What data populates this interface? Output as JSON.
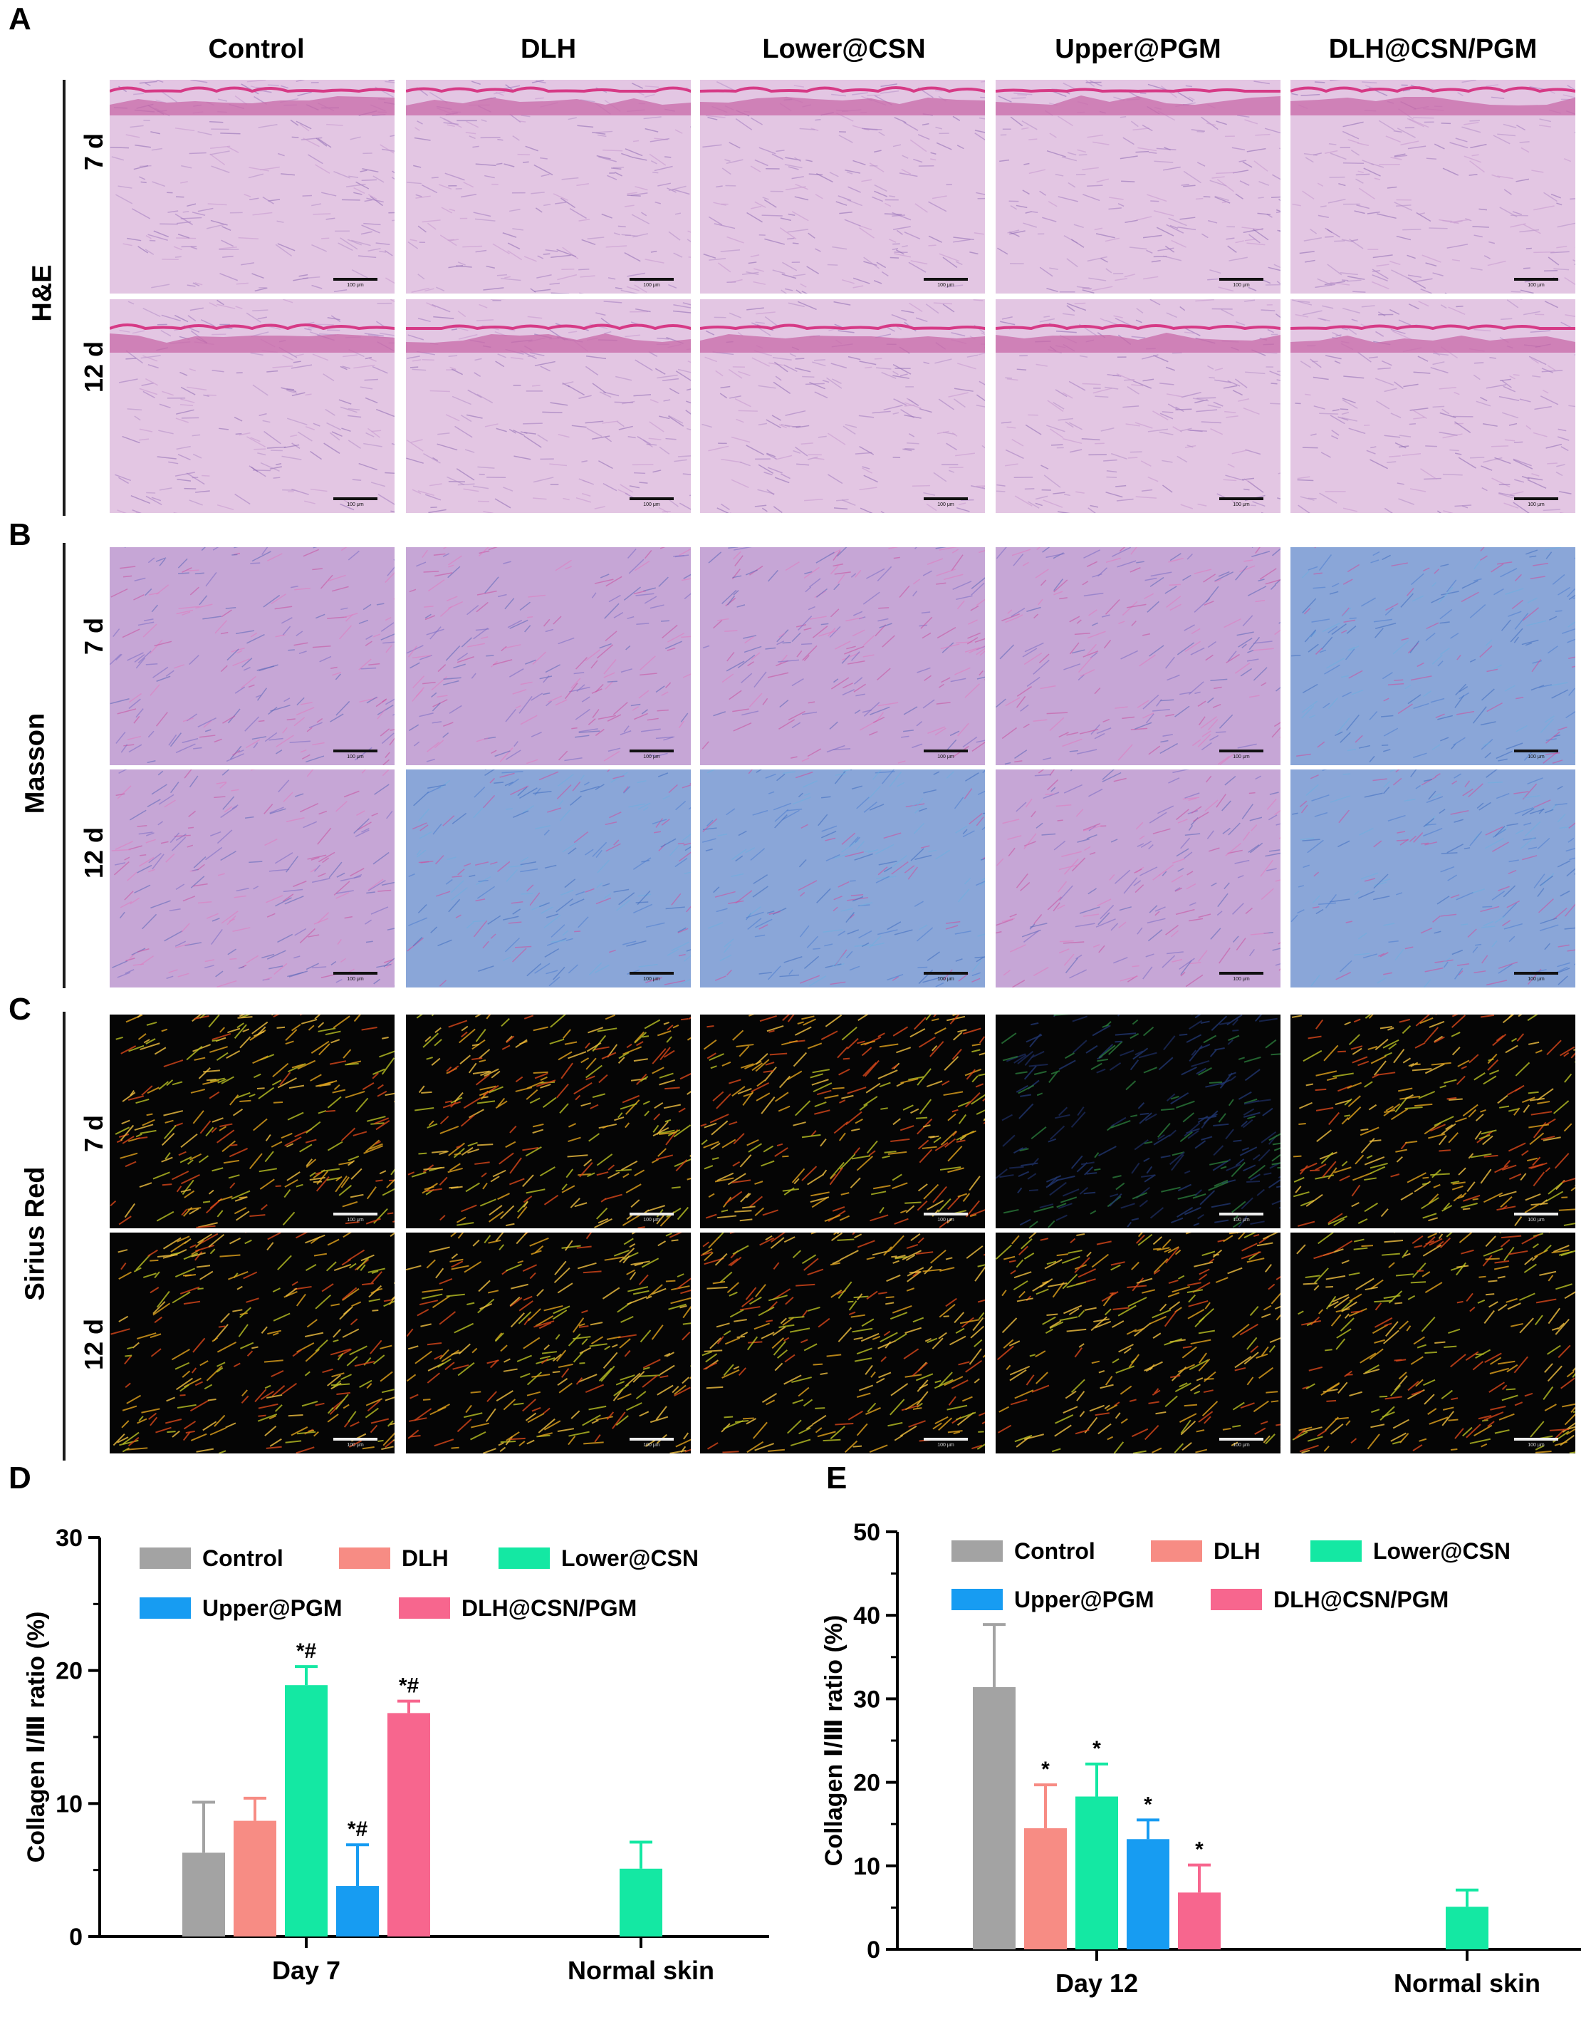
{
  "panels": {
    "A": "A",
    "B": "B",
    "C": "C",
    "D": "D",
    "E": "E"
  },
  "columns": [
    "Control",
    "DLH",
    "Lower@CSN",
    "Upper@PGM",
    "DLH@CSN/PGM"
  ],
  "stains": [
    "H&E",
    "Masson",
    "Sirius Red"
  ],
  "timepoints": [
    "7 d",
    "12 d"
  ],
  "scale_bar": "100 μm",
  "colors": {
    "control": "#a3a3a3",
    "dlh": "#f78c84",
    "lower_csn": "#14e8a3",
    "upper_pgm": "#179cf2",
    "dlh_csn_pgm": "#f7668e",
    "he_bg": "#e3c6e3",
    "he_epi": "#d63a86",
    "masson_pink": "#d46db5",
    "masson_blue": "#6b7fc7",
    "sirius_bg": "#050505"
  },
  "chart_data": [
    {
      "type": "bar",
      "panel": "D",
      "categories": [
        "Day 7",
        "Normal skin"
      ],
      "ylabel": "Collagen Ⅰ/Ⅲ ratio (%)",
      "ylim": [
        0,
        30
      ],
      "yticks": [
        "0",
        "10",
        "20",
        "30"
      ],
      "legend": "top",
      "series": [
        {
          "name": "Control",
          "values": [
            6.3,
            null
          ],
          "errors": [
            3.8,
            null
          ],
          "annotations": [
            "",
            ""
          ],
          "color": "#a3a3a3"
        },
        {
          "name": "DLH",
          "values": [
            8.7,
            null
          ],
          "errors": [
            1.7,
            null
          ],
          "annotations": [
            "",
            ""
          ],
          "color": "#f78c84"
        },
        {
          "name": "Lower@CSN",
          "values": [
            18.9,
            5.1
          ],
          "errors": [
            1.4,
            2.0
          ],
          "annotations": [
            "*#",
            ""
          ],
          "color": "#14e8a3"
        },
        {
          "name": "Upper@PGM",
          "values": [
            3.8,
            null
          ],
          "errors": [
            3.1,
            null
          ],
          "annotations": [
            "*#",
            ""
          ],
          "color": "#179cf2"
        },
        {
          "name": "DLH@CSN/PGM",
          "values": [
            16.8,
            null
          ],
          "errors": [
            0.9,
            null
          ],
          "annotations": [
            "*#",
            ""
          ],
          "color": "#f7668e"
        }
      ]
    },
    {
      "type": "bar",
      "panel": "E",
      "categories": [
        "Day 12",
        "Normal skin"
      ],
      "ylabel": "Collagen Ⅰ/Ⅲ ratio (%)",
      "ylim": [
        0,
        50
      ],
      "yticks": [
        "0",
        "10",
        "20",
        "30",
        "40",
        "50"
      ],
      "legend": "top",
      "series": [
        {
          "name": "Control",
          "values": [
            31.4,
            null
          ],
          "errors": [
            7.5,
            null
          ],
          "annotations": [
            "",
            ""
          ],
          "color": "#a3a3a3"
        },
        {
          "name": "DLH",
          "values": [
            14.5,
            null
          ],
          "errors": [
            5.2,
            null
          ],
          "annotations": [
            "*",
            ""
          ],
          "color": "#f78c84"
        },
        {
          "name": "Lower@CSN",
          "values": [
            18.3,
            5.1
          ],
          "errors": [
            3.9,
            2.0
          ],
          "annotations": [
            "*",
            ""
          ],
          "color": "#14e8a3"
        },
        {
          "name": "Upper@PGM",
          "values": [
            13.2,
            null
          ],
          "errors": [
            2.3,
            null
          ],
          "annotations": [
            "*",
            ""
          ],
          "color": "#179cf2"
        },
        {
          "name": "DLH@CSN/PGM",
          "values": [
            6.8,
            null
          ],
          "errors": [
            3.3,
            null
          ],
          "annotations": [
            "*",
            ""
          ],
          "color": "#f7668e"
        }
      ]
    }
  ]
}
